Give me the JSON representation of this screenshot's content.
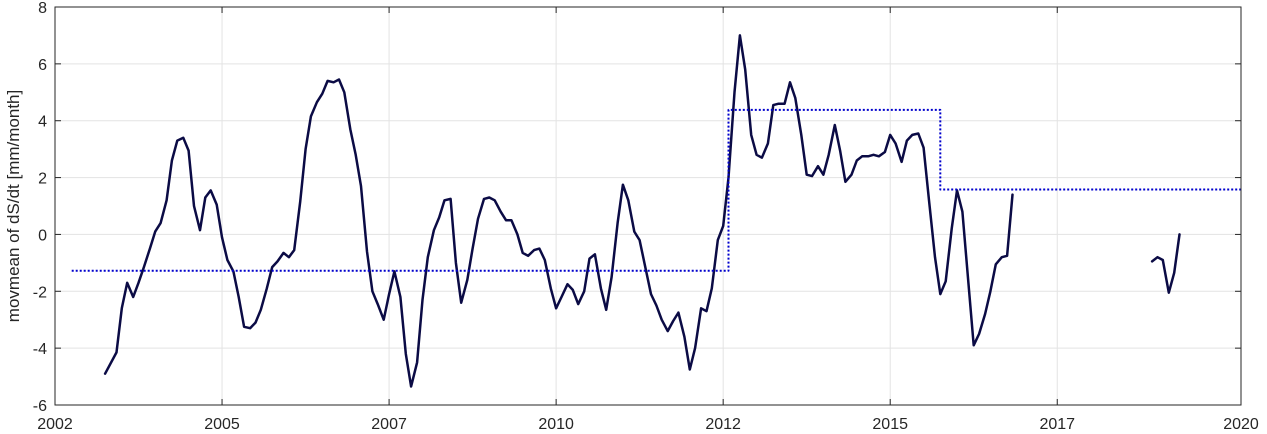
{
  "chart_data": {
    "type": "line",
    "xlabel": "",
    "ylabel": "movmean of dS/dt [mm/month]",
    "xlim": [
      2002.25,
      2020.0
    ],
    "ylim": [
      -6,
      8
    ],
    "grid": true,
    "x_ticks": [
      {
        "value": 2002.25,
        "label": "2002"
      },
      {
        "value": 2004.75,
        "label": "2005"
      },
      {
        "value": 2007.25,
        "label": "2007"
      },
      {
        "value": 2009.75,
        "label": "2010"
      },
      {
        "value": 2012.25,
        "label": "2012"
      },
      {
        "value": 2014.75,
        "label": "2015"
      },
      {
        "value": 2017.25,
        "label": "2017"
      },
      {
        "value": 2020.0,
        "label": "2020"
      }
    ],
    "y_ticks": [
      -6,
      -4,
      -2,
      0,
      2,
      4,
      6,
      8
    ],
    "series": [
      {
        "style": "solid",
        "color": "#0b0b45",
        "segments": [
          [
            [
              2003.0,
              -4.9
            ],
            [
              2003.17,
              -4.15
            ],
            [
              2003.25,
              -2.6
            ],
            [
              2003.33,
              -1.7
            ],
            [
              2003.42,
              -2.2
            ],
            [
              2003.5,
              -1.7
            ],
            [
              2003.58,
              -1.15
            ],
            [
              2003.67,
              -0.5
            ],
            [
              2003.75,
              0.1
            ],
            [
              2003.83,
              0.4
            ],
            [
              2003.92,
              1.2
            ],
            [
              2004.0,
              2.6
            ],
            [
              2004.08,
              3.3
            ],
            [
              2004.17,
              3.4
            ],
            [
              2004.25,
              2.95
            ],
            [
              2004.33,
              1.0
            ],
            [
              2004.42,
              0.15
            ],
            [
              2004.5,
              1.3
            ],
            [
              2004.58,
              1.55
            ],
            [
              2004.67,
              1.05
            ],
            [
              2004.75,
              -0.1
            ],
            [
              2004.83,
              -0.9
            ],
            [
              2004.92,
              -1.3
            ],
            [
              2005.0,
              -2.2
            ],
            [
              2005.08,
              -3.25
            ],
            [
              2005.17,
              -3.3
            ],
            [
              2005.25,
              -3.1
            ],
            [
              2005.33,
              -2.65
            ],
            [
              2005.42,
              -1.9
            ],
            [
              2005.5,
              -1.15
            ],
            [
              2005.58,
              -0.95
            ],
            [
              2005.67,
              -0.65
            ],
            [
              2005.75,
              -0.8
            ],
            [
              2005.83,
              -0.55
            ],
            [
              2005.92,
              1.15
            ],
            [
              2006.0,
              3.0
            ],
            [
              2006.08,
              4.15
            ],
            [
              2006.17,
              4.65
            ],
            [
              2006.25,
              4.95
            ],
            [
              2006.33,
              5.4
            ],
            [
              2006.42,
              5.35
            ],
            [
              2006.5,
              5.45
            ],
            [
              2006.58,
              5.0
            ],
            [
              2006.67,
              3.7
            ],
            [
              2006.75,
              2.8
            ],
            [
              2006.83,
              1.7
            ],
            [
              2006.92,
              -0.6
            ],
            [
              2007.0,
              -2.0
            ],
            [
              2007.08,
              -2.45
            ],
            [
              2007.17,
              -3.0
            ],
            [
              2007.25,
              -2.1
            ],
            [
              2007.33,
              -1.3
            ],
            [
              2007.42,
              -2.2
            ],
            [
              2007.5,
              -4.2
            ],
            [
              2007.58,
              -5.35
            ],
            [
              2007.67,
              -4.5
            ],
            [
              2007.75,
              -2.3
            ],
            [
              2007.83,
              -0.8
            ],
            [
              2007.92,
              0.15
            ],
            [
              2008.0,
              0.6
            ],
            [
              2008.08,
              1.2
            ],
            [
              2008.17,
              1.25
            ],
            [
              2008.25,
              -1.0
            ],
            [
              2008.33,
              -2.4
            ],
            [
              2008.42,
              -1.6
            ],
            [
              2008.5,
              -0.5
            ],
            [
              2008.58,
              0.55
            ],
            [
              2008.67,
              1.25
            ],
            [
              2008.75,
              1.3
            ],
            [
              2008.83,
              1.2
            ],
            [
              2008.92,
              0.8
            ],
            [
              2009.0,
              0.5
            ],
            [
              2009.08,
              0.5
            ],
            [
              2009.17,
              0.0
            ],
            [
              2009.25,
              -0.65
            ],
            [
              2009.33,
              -0.75
            ],
            [
              2009.42,
              -0.55
            ],
            [
              2009.5,
              -0.5
            ],
            [
              2009.58,
              -0.9
            ],
            [
              2009.67,
              -1.9
            ],
            [
              2009.75,
              -2.6
            ],
            [
              2009.83,
              -2.2
            ],
            [
              2009.92,
              -1.75
            ],
            [
              2010.0,
              -1.95
            ],
            [
              2010.08,
              -2.45
            ],
            [
              2010.17,
              -2.0
            ],
            [
              2010.25,
              -0.85
            ],
            [
              2010.33,
              -0.7
            ],
            [
              2010.42,
              -1.9
            ],
            [
              2010.5,
              -2.65
            ],
            [
              2010.58,
              -1.5
            ],
            [
              2010.67,
              0.4
            ],
            [
              2010.75,
              1.75
            ],
            [
              2010.83,
              1.2
            ],
            [
              2010.92,
              0.1
            ],
            [
              2011.0,
              -0.2
            ],
            [
              2011.08,
              -1.1
            ],
            [
              2011.17,
              -2.1
            ],
            [
              2011.25,
              -2.5
            ],
            [
              2011.33,
              -3.0
            ],
            [
              2011.42,
              -3.4
            ],
            [
              2011.5,
              -3.05
            ],
            [
              2011.58,
              -2.75
            ],
            [
              2011.67,
              -3.6
            ],
            [
              2011.75,
              -4.75
            ],
            [
              2011.83,
              -4.0
            ],
            [
              2011.92,
              -2.6
            ],
            [
              2012.0,
              -2.7
            ],
            [
              2012.08,
              -1.9
            ],
            [
              2012.17,
              -0.2
            ],
            [
              2012.25,
              0.3
            ],
            [
              2012.33,
              2.0
            ],
            [
              2012.42,
              5.0
            ],
            [
              2012.5,
              7.0
            ],
            [
              2012.58,
              5.8
            ],
            [
              2012.67,
              3.5
            ],
            [
              2012.75,
              2.8
            ],
            [
              2012.83,
              2.7
            ],
            [
              2012.92,
              3.2
            ],
            [
              2013.0,
              4.55
            ],
            [
              2013.08,
              4.6
            ],
            [
              2013.17,
              4.6
            ],
            [
              2013.25,
              5.35
            ],
            [
              2013.33,
              4.8
            ],
            [
              2013.42,
              3.5
            ],
            [
              2013.5,
              2.1
            ],
            [
              2013.58,
              2.05
            ],
            [
              2013.67,
              2.4
            ],
            [
              2013.75,
              2.1
            ],
            [
              2013.83,
              2.8
            ],
            [
              2013.92,
              3.85
            ],
            [
              2014.0,
              2.95
            ],
            [
              2014.08,
              1.85
            ],
            [
              2014.17,
              2.1
            ],
            [
              2014.25,
              2.6
            ],
            [
              2014.33,
              2.75
            ],
            [
              2014.42,
              2.75
            ],
            [
              2014.5,
              2.8
            ],
            [
              2014.58,
              2.75
            ],
            [
              2014.67,
              2.9
            ],
            [
              2014.75,
              3.5
            ],
            [
              2014.83,
              3.2
            ],
            [
              2014.92,
              2.55
            ],
            [
              2015.0,
              3.3
            ],
            [
              2015.08,
              3.5
            ],
            [
              2015.17,
              3.55
            ],
            [
              2015.25,
              3.05
            ],
            [
              2015.33,
              1.2
            ],
            [
              2015.42,
              -0.8
            ],
            [
              2015.5,
              -2.1
            ],
            [
              2015.58,
              -1.65
            ],
            [
              2015.67,
              0.2
            ],
            [
              2015.75,
              1.55
            ],
            [
              2015.83,
              0.8
            ],
            [
              2015.92,
              -1.7
            ],
            [
              2016.0,
              -3.9
            ],
            [
              2016.08,
              -3.5
            ],
            [
              2016.17,
              -2.8
            ],
            [
              2016.25,
              -2.0
            ],
            [
              2016.33,
              -1.05
            ],
            [
              2016.42,
              -0.8
            ],
            [
              2016.5,
              -0.75
            ],
            [
              2016.58,
              1.4
            ]
          ],
          [
            [
              2018.67,
              -0.95
            ],
            [
              2018.75,
              -0.8
            ],
            [
              2018.83,
              -0.9
            ],
            [
              2018.92,
              -2.05
            ],
            [
              2019.0,
              -1.35
            ],
            [
              2019.08,
              0.0
            ]
          ]
        ]
      },
      {
        "style": "dotted",
        "color": "#0000cc",
        "segments": [
          [
            [
              2002.5,
              -1.28
            ],
            [
              2012.33,
              -1.28
            ],
            [
              2012.33,
              4.38
            ],
            [
              2015.5,
              4.38
            ],
            [
              2015.5,
              1.58
            ],
            [
              2020.0,
              1.58
            ]
          ]
        ]
      }
    ]
  }
}
